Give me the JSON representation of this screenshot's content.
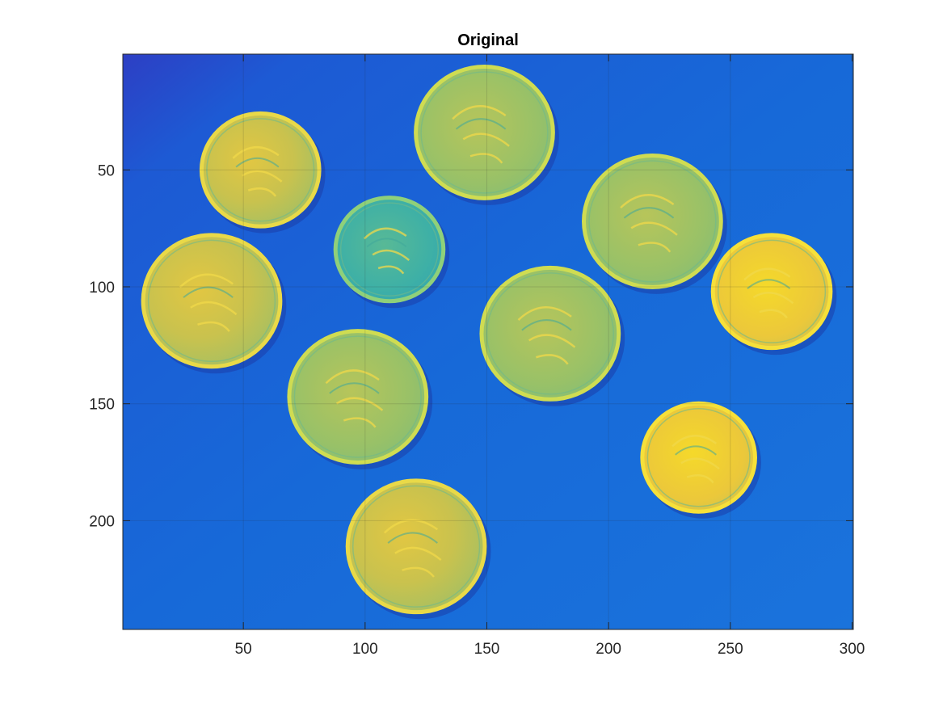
{
  "chart_data": {
    "type": "heatmap",
    "title": "Original",
    "xlabel": "",
    "ylabel": "",
    "image_size": [
      300,
      246
    ],
    "xlim": [
      0.5,
      300.5
    ],
    "ylim": [
      0.5,
      246.5
    ],
    "y_reversed": true,
    "xticks": [
      50,
      100,
      150,
      200,
      250,
      300
    ],
    "yticks": [
      50,
      100,
      150,
      200
    ],
    "xtick_labels": [
      "50",
      "100",
      "150",
      "200",
      "250",
      "300"
    ],
    "ytick_labels": [
      "50",
      "100",
      "150",
      "200"
    ],
    "grid": true,
    "colormap": "parula",
    "description_colors": {
      "background": "#1769d8",
      "background_dark": "#2a44c8",
      "coin_light": "#e8c83a",
      "coin_mid": "#9cc36a",
      "coin_teal": "#4fb8a0",
      "coin_bright": "#f2d62c",
      "coin_edge": "#d8e04a",
      "shadow": "#1a3fa8"
    },
    "coins": [
      {
        "id": "coin-1",
        "center": [
          57,
          50
        ],
        "radius": 25,
        "tone": "light"
      },
      {
        "id": "coin-2",
        "center": [
          149,
          34
        ],
        "radius": 29,
        "tone": "mid"
      },
      {
        "id": "coin-3",
        "center": [
          110,
          84
        ],
        "radius": 23,
        "tone": "teal"
      },
      {
        "id": "coin-4",
        "center": [
          218,
          72
        ],
        "radius": 29,
        "tone": "mid"
      },
      {
        "id": "coin-5",
        "center": [
          37,
          106
        ],
        "radius": 29,
        "tone": "light"
      },
      {
        "id": "coin-6",
        "center": [
          176,
          120
        ],
        "radius": 29,
        "tone": "mid"
      },
      {
        "id": "coin-7",
        "center": [
          267,
          102
        ],
        "radius": 25,
        "tone": "bright"
      },
      {
        "id": "coin-8",
        "center": [
          97,
          147
        ],
        "radius": 29,
        "tone": "mid"
      },
      {
        "id": "coin-9",
        "center": [
          237,
          173
        ],
        "radius": 24,
        "tone": "bright"
      },
      {
        "id": "coin-10",
        "center": [
          121,
          211
        ],
        "radius": 29,
        "tone": "light"
      }
    ]
  }
}
